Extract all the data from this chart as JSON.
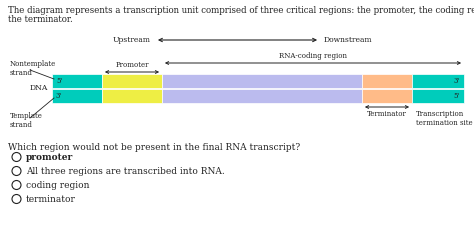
{
  "title_line1": "The diagram represents a transcription unit comprised of three critical regions: the promoter, the coding region, and",
  "title_line2": "the terminator.",
  "upstream_label": "Upstream",
  "downstream_label": "Downstream",
  "nontemplate_label": "Nontemplate\nstrand",
  "template_label": "Template\nstrand",
  "dna_label": "DNA",
  "promoter_label": "Promoter",
  "rna_coding_label": "RNA-coding region",
  "terminator_label": "Terminator",
  "transcription_site_label": "Transcription\ntermination site",
  "question": "Which region would not be present in the final RNA transcript?",
  "options": [
    "promoter",
    "All three regions are transcribed into RNA.",
    "coding region",
    "terminator"
  ],
  "bold_option_idx": 0,
  "bg_color": "#ffffff",
  "text_color": "#222222",
  "strand_colors": {
    "cyan": "#00CCBB",
    "yellow": "#EEEE44",
    "lavender": "#BBBBEE",
    "peach": "#FFBB88"
  },
  "fig_w": 4.74,
  "fig_h": 2.44,
  "dpi": 100,
  "title_fs": 6.2,
  "label_fs": 5.5,
  "small_fs": 5.0,
  "q_fs": 6.5,
  "opt_fs": 6.5
}
